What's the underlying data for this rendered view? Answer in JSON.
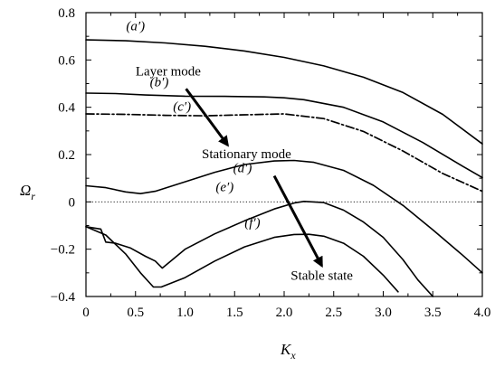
{
  "chart_data": {
    "type": "line",
    "xlabel": "K",
    "xlabel_sub": "x",
    "ylabel": "Ω",
    "ylabel_sub": "r",
    "xlim": [
      0,
      4.0
    ],
    "ylim": [
      -0.4,
      0.8
    ],
    "x_ticks": [
      "0",
      "0.5",
      "1.0",
      "1.5",
      "2.0",
      "2.5",
      "3.0",
      "3.5",
      "4.0"
    ],
    "y_ticks": [
      "0.8",
      "0.6",
      "0.4",
      "0.2",
      "0",
      "−0.2",
      "−0.4"
    ],
    "grid": false,
    "reference_line": {
      "y": 0,
      "style": "dotted"
    },
    "series": [
      {
        "name": "(a′)",
        "style": "solid",
        "x": [
          0,
          0.4,
          0.8,
          1.2,
          1.6,
          2.0,
          2.4,
          2.8,
          3.2,
          3.6,
          4.0
        ],
        "y": [
          0.685,
          0.681,
          0.672,
          0.658,
          0.638,
          0.611,
          0.575,
          0.527,
          0.462,
          0.37,
          0.245
        ]
      },
      {
        "name": "(b′)",
        "style": "solid",
        "x": [
          0,
          0.3,
          0.6,
          1.0,
          1.4,
          1.8,
          2.0,
          2.2,
          2.6,
          3.0,
          3.4,
          3.8,
          4.0
        ],
        "y": [
          0.46,
          0.458,
          0.452,
          0.447,
          0.446,
          0.444,
          0.44,
          0.432,
          0.4,
          0.338,
          0.251,
          0.151,
          0.103
        ]
      },
      {
        "name": "(c′)",
        "style": "dashdot",
        "x": [
          0,
          0.4,
          0.8,
          1.2,
          1.6,
          2.0,
          2.4,
          2.8,
          3.2,
          3.6,
          4.0
        ],
        "y": [
          0.372,
          0.37,
          0.366,
          0.364,
          0.368,
          0.372,
          0.352,
          0.298,
          0.215,
          0.12,
          0.045
        ]
      },
      {
        "name": "(d′)",
        "style": "solid",
        "x": [
          0,
          0.2,
          0.4,
          0.55,
          0.7,
          1.0,
          1.3,
          1.6,
          1.9,
          2.1,
          2.3,
          2.6,
          2.9,
          3.2,
          3.5,
          3.8,
          4.0
        ],
        "y": [
          0.068,
          0.06,
          0.042,
          0.035,
          0.045,
          0.085,
          0.125,
          0.158,
          0.173,
          0.175,
          0.167,
          0.133,
          0.07,
          -0.015,
          -0.118,
          -0.225,
          -0.3
        ]
      },
      {
        "name": "(e′)",
        "style": "solid",
        "x": [
          0,
          0.15,
          0.2,
          0.3,
          0.45,
          0.6,
          0.7,
          0.77,
          1.0,
          1.3,
          1.6,
          1.9,
          2.1,
          2.2,
          2.4,
          2.6,
          2.8,
          3.0,
          3.2,
          3.35,
          3.5
        ],
        "y": [
          -0.105,
          -0.115,
          -0.17,
          -0.175,
          -0.195,
          -0.23,
          -0.25,
          -0.28,
          -0.2,
          -0.135,
          -0.08,
          -0.03,
          -0.005,
          0.002,
          -0.003,
          -0.035,
          -0.085,
          -0.15,
          -0.245,
          -0.33,
          -0.4
        ]
      },
      {
        "name": "(f′)",
        "style": "solid",
        "x": [
          0,
          0.2,
          0.4,
          0.55,
          0.68,
          0.76,
          1.0,
          1.3,
          1.6,
          1.9,
          2.1,
          2.25,
          2.4,
          2.6,
          2.8,
          3.0,
          3.15
        ],
        "y": [
          -0.105,
          -0.14,
          -0.22,
          -0.3,
          -0.36,
          -0.36,
          -0.32,
          -0.25,
          -0.19,
          -0.15,
          -0.138,
          -0.137,
          -0.145,
          -0.175,
          -0.23,
          -0.31,
          -0.38
        ]
      }
    ],
    "annotations": [
      {
        "text": "(a′)",
        "x": 0.5,
        "y": 0.725
      },
      {
        "text": "Layer mode",
        "x": 0.83,
        "y": 0.535
      },
      {
        "text": "(b′)",
        "x": 0.74,
        "y": 0.488
      },
      {
        "text": "(c′)",
        "x": 0.97,
        "y": 0.385
      },
      {
        "text": "Stationary mode",
        "x": 1.62,
        "y": 0.185
      },
      {
        "text": "(d′)",
        "x": 1.58,
        "y": 0.125
      },
      {
        "text": "(e′)",
        "x": 1.4,
        "y": 0.045
      },
      {
        "text": "(f′)",
        "x": 1.68,
        "y": -0.105
      },
      {
        "text": "Stable state",
        "x": 2.38,
        "y": -0.33
      }
    ],
    "arrows": [
      {
        "from": [
          1.01,
          0.478
        ],
        "to": [
          1.43,
          0.24
        ]
      },
      {
        "from": [
          1.9,
          0.11
        ],
        "to": [
          2.38,
          -0.27
        ]
      }
    ]
  }
}
